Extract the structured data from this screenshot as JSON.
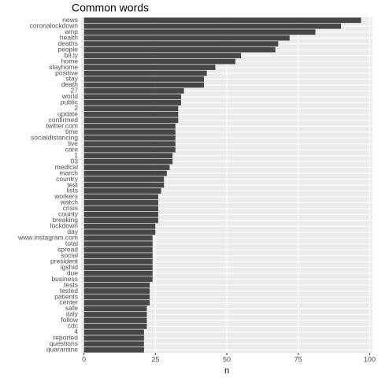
{
  "chart_data": {
    "type": "barh",
    "title": "Common words",
    "x_label": "n",
    "categories": [
      "news",
      "coronalockdown",
      "amp",
      "health",
      "deaths",
      "people",
      "bit.ly",
      "home",
      "stayhome",
      "positive",
      "stay",
      "death",
      "27",
      "world",
      "public",
      "2",
      "update",
      "confirmed",
      "twitter.com",
      "time",
      "socialdistancing",
      "live",
      "care",
      "1",
      "03",
      "medical",
      "march",
      "country",
      "test",
      "lists",
      "workers",
      "watch",
      "crisis",
      "county",
      "breaking",
      "lockdown",
      "day",
      "www.instagram.com",
      "total",
      "spread",
      "social",
      "president",
      "igshid",
      "due",
      "business",
      "tests",
      "tested",
      "patients",
      "center",
      "safe",
      "italy",
      "follow",
      "cdc",
      "4",
      "reported",
      "questions",
      "quarantine"
    ],
    "values": [
      97,
      90,
      81,
      72,
      68,
      67,
      55,
      53,
      46,
      43,
      42,
      42,
      35,
      34,
      34,
      33,
      33,
      33,
      32,
      32,
      32,
      32,
      32,
      31,
      31,
      30,
      29,
      28,
      28,
      27,
      26,
      26,
      26,
      26,
      26,
      25,
      25,
      24,
      24,
      24,
      24,
      24,
      24,
      24,
      24,
      23,
      23,
      23,
      23,
      22,
      22,
      22,
      22,
      21,
      21,
      21,
      21
    ],
    "color": "#474747",
    "xlim": [
      -1,
      101
    ],
    "xticks": [
      0,
      25,
      50,
      75,
      100
    ],
    "grid": true
  }
}
